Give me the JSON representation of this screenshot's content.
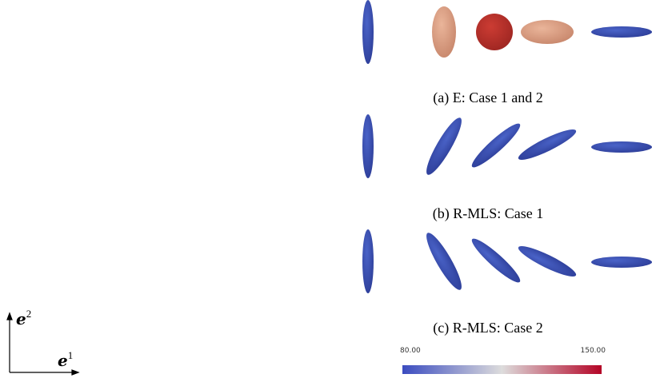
{
  "panels": [
    {
      "caption": "(a) E: Case 1 and 2"
    },
    {
      "caption": "(b) R-MLS: Case 1"
    },
    {
      "caption": "(c) R-MLS: Case 2"
    }
  ],
  "colorbar": {
    "min_label": "80.00",
    "max_label": "150.00"
  },
  "axes": {
    "horizontal": {
      "symbol": "e",
      "index": "1"
    },
    "vertical": {
      "symbol": "e",
      "index": "2"
    }
  }
}
